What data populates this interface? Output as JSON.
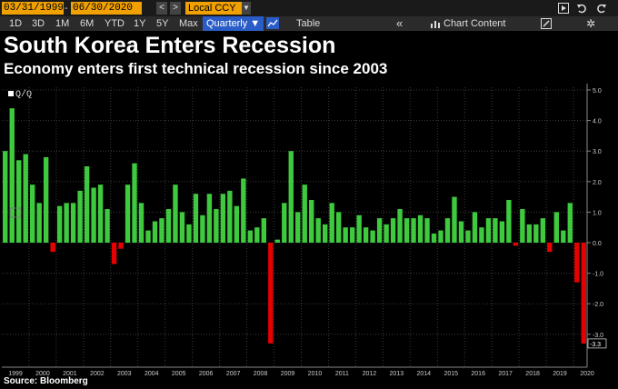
{
  "toolbar": {
    "start_date": "03/31/1999",
    "end_date": "06/30/2020",
    "range_sep": "-",
    "prev": "<",
    "next": ">",
    "currency": "Local CCY",
    "currency_arrow": "▼",
    "icons": [
      "play-icon",
      "undo-icon",
      "redo-icon"
    ],
    "ranges": [
      "1D",
      "3D",
      "1M",
      "6M",
      "YTD",
      "1Y",
      "5Y",
      "Max"
    ],
    "frequency": "Quarterly ▼",
    "table_label": "Table",
    "collapse": "«",
    "chart_content": "Chart Content",
    "gear": "✲"
  },
  "title": "South Korea Enters Recession",
  "subtitle": "Economy enters first technical recession since 2003",
  "legend": "Q/Q",
  "source": "Source: Bloomberg",
  "last_value_label": "-3.3",
  "colors": {
    "positive": "#3ec93e",
    "negative": "#e60000",
    "background": "#000000",
    "grid": "#3a3a3a"
  },
  "chart_data": {
    "type": "bar",
    "title": "South Korea Enters Recession",
    "subtitle": "Economy enters first technical recession since 2003",
    "ylim": [
      -4,
      5
    ],
    "yticks": [
      "5.0",
      "4.0",
      "3.0",
      "2.0",
      "1.0",
      "0.0",
      "-1.0",
      "-2.0",
      "-3.0"
    ],
    "ytick_values": [
      5,
      4,
      3,
      2,
      1,
      0,
      -1,
      -2,
      -3
    ],
    "years": [
      "1999",
      "2000",
      "2001",
      "2002",
      "2003",
      "2004",
      "2005",
      "2006",
      "2007",
      "2008",
      "2009",
      "2010",
      "2011",
      "2012",
      "2013",
      "2014",
      "2015",
      "2016",
      "2017",
      "2018",
      "2019",
      "2020"
    ],
    "legend_position": "top-left",
    "grid": true,
    "series": [
      {
        "name": "Q/Q",
        "values": [
          3.0,
          4.4,
          2.7,
          2.9,
          1.9,
          1.3,
          2.8,
          -0.3,
          1.2,
          1.3,
          1.3,
          1.7,
          2.5,
          1.8,
          1.9,
          1.1,
          -0.7,
          -0.2,
          1.9,
          2.6,
          1.3,
          0.4,
          0.7,
          0.8,
          1.1,
          1.9,
          1.0,
          0.6,
          1.6,
          0.9,
          1.6,
          1.1,
          1.6,
          1.7,
          1.2,
          2.1,
          0.4,
          0.5,
          0.8,
          -3.3,
          0.1,
          1.3,
          3.0,
          1.0,
          1.9,
          1.4,
          0.8,
          0.6,
          1.3,
          1.0,
          0.5,
          0.5,
          0.9,
          0.5,
          0.4,
          0.8,
          0.6,
          0.8,
          1.1,
          0.8,
          0.8,
          0.9,
          0.8,
          0.3,
          0.4,
          0.8,
          1.5,
          0.7,
          0.4,
          1.0,
          0.5,
          0.8,
          0.8,
          0.7,
          1.4,
          -0.1,
          1.1,
          0.6,
          0.6,
          0.8,
          -0.3,
          1.0,
          0.4,
          1.3,
          -1.3,
          -3.3
        ]
      }
    ]
  }
}
